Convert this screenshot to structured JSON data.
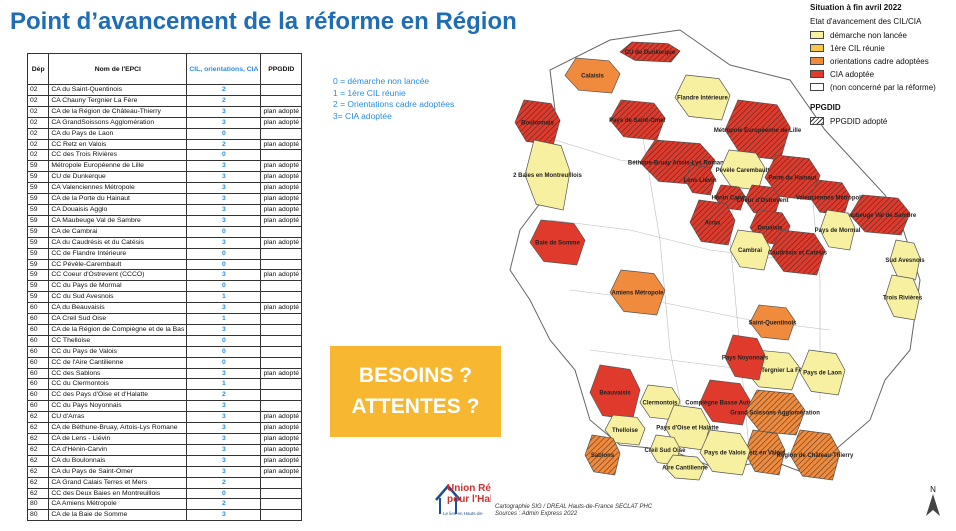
{
  "title": "Point d’avancement de la réforme en Région",
  "table": {
    "headers": {
      "dep": "Dép",
      "name": "Nom de l'EPCI",
      "cil": "CIL, orientations, CIA",
      "ppgdid": "PPGDID"
    },
    "rows": [
      [
        "02",
        "CA du Saint-Quentinois",
        "2",
        ""
      ],
      [
        "02",
        "CA Chauny Tergnier La Fère",
        "2",
        ""
      ],
      [
        "02",
        "CA de la Région de Château-Thierry",
        "3",
        "plan adopté"
      ],
      [
        "02",
        "CA GrandSoissons Agglomération",
        "3",
        "plan adopté"
      ],
      [
        "02",
        "CA du Pays de Laon",
        "0",
        ""
      ],
      [
        "02",
        "CC Retz en Valois",
        "2",
        "plan adopté"
      ],
      [
        "02",
        "CC des Trois Rivières",
        "0",
        ""
      ],
      [
        "59",
        "Métropole Européenne de Lille",
        "3",
        "plan adopté"
      ],
      [
        "59",
        "CU de Dunkerque",
        "3",
        "plan adopté"
      ],
      [
        "59",
        "CA Valenciennes Métropole",
        "3",
        "plan adopté"
      ],
      [
        "59",
        "CA de la Porte du Hainaut",
        "3",
        "plan adopté"
      ],
      [
        "59",
        "CA Douaisis Agglo",
        "3",
        "plan adopté"
      ],
      [
        "59",
        "CA Maubeuge Val de Sambre",
        "3",
        "plan adopté"
      ],
      [
        "59",
        "CA de Cambrai",
        "0",
        ""
      ],
      [
        "59",
        "CA du Caudrésis et du Catésis",
        "3",
        "plan adopté"
      ],
      [
        "59",
        "CC de Flandre Intérieure",
        "0",
        ""
      ],
      [
        "59",
        "CC Pévèle-Carembault",
        "0",
        ""
      ],
      [
        "59",
        "CC Coeur d'Ostrevent (CCCO)",
        "3",
        "plan adopté"
      ],
      [
        "59",
        "CC du Pays de Mormal",
        "0",
        ""
      ],
      [
        "59",
        "CC du Sud Avesnois",
        "1",
        ""
      ],
      [
        "60",
        "CA du Beauvaisis",
        "3",
        "plan adopté"
      ],
      [
        "60",
        "CA Creil Sud Oise",
        "1",
        ""
      ],
      [
        "60",
        "CA de la Région de Compiègne et de la Bas",
        "3",
        ""
      ],
      [
        "60",
        "CC Thelloise",
        "0",
        ""
      ],
      [
        "60",
        "CC du Pays de Valois",
        "0",
        ""
      ],
      [
        "60",
        "CC de l'Aire Cantilienne",
        "0",
        ""
      ],
      [
        "60",
        "CC des Sablons",
        "3",
        "plan adopté"
      ],
      [
        "60",
        "CC du Clermontois",
        "1",
        ""
      ],
      [
        "60",
        "CC des Pays d'Oise et d'Halatte",
        "2",
        ""
      ],
      [
        "60",
        "CC du Pays Noyonnais",
        "3",
        ""
      ],
      [
        "62",
        "CU d'Arras",
        "3",
        "plan adopté"
      ],
      [
        "62",
        "CA de Béthune-Bruay, Artois-Lys Romane",
        "3",
        "plan adopté"
      ],
      [
        "62",
        "CA de Lens - Liévin",
        "3",
        "plan adopté"
      ],
      [
        "62",
        "CA d'Hénin-Carvin",
        "3",
        "plan adopté"
      ],
      [
        "62",
        "CA du Boulonnais",
        "3",
        "plan adopté"
      ],
      [
        "62",
        "CA du Pays de Saint-Omer",
        "3",
        "plan adopté"
      ],
      [
        "62",
        "CA Grand Calais Terres et Mers",
        "2",
        ""
      ],
      [
        "62",
        "CC des Deux Baies en Montreuillois",
        "0",
        ""
      ],
      [
        "80",
        "CA Amiens Métropole",
        "2",
        ""
      ],
      [
        "80",
        "CA de la Baie de Somme",
        "3",
        ""
      ]
    ]
  },
  "code_legend": [
    "0 = démarche non lancée",
    "1 = 1ère CIL réunie",
    "2 = Orientations cadre adoptées",
    "3= CIA adoptée"
  ],
  "besoins": {
    "line1": "BESOINS ?",
    "line2": "ATTENTES ?"
  },
  "map_legend": {
    "situation": "Situation à fin avril 2022",
    "etat_title": "Etat d'avancement des CIL/CIA",
    "items": [
      {
        "label": "démarche non lancée",
        "color": "#f7f0a0"
      },
      {
        "label": "1ère CIL réunie",
        "color": "#f9c64a"
      },
      {
        "label": "orientations cadre adoptées",
        "color": "#f08a3c"
      },
      {
        "label": "CIA adoptée",
        "color": "#e03a2c"
      },
      {
        "label": "(non concerné par la réforme)",
        "color": "#ffffff"
      }
    ],
    "ppgdid_title": "PPGDID",
    "ppgdid_item": "PPGDID adopté"
  },
  "map_labels": [
    "CU de Dunkerque",
    "Calaisis",
    "Flandre Intérieure",
    "Pays de Saint-Omer",
    "Boulonnais",
    "Métropole Européenne de Lille",
    "Béthune-Bruay Artois-Lys Romane",
    "Pévèle Carembault",
    "Porte du Hainaut",
    "Lens Liévin",
    "Hénin Carvin",
    "Coeur d'Ostrevent",
    "Valenciennes Métropole",
    "2 Baies en Montreuillois",
    "Arras",
    "Douaisis",
    "Maubeuge Val de Sambre",
    "Pays de Mormal",
    "Cambrai",
    "Caudrésis et Catésis",
    "Baie de Somme",
    "Sud Avesnois",
    "Trois Rivières",
    "Amiens Métropole",
    "Saint-Quentinois",
    "Chauny-Tergnier La Fère",
    "Pays Noyonnais",
    "Pays de Laon",
    "Beauvaisis",
    "Clermontois",
    "Compiègne Basse Automne",
    "Grand Soissons Agglomération",
    "Thelloise",
    "Pays d'Oise et Halatte",
    "Retz en Valois",
    "Creil Sud Oise",
    "Sablons",
    "Aire Cantilienne",
    "Pays de Valois",
    "Région de Château-Thierry"
  ],
  "source": {
    "line1": "Cartographie SIG / DREAL Hauts-de-France SECLAT PHC",
    "line2": "Sources : Admin Express 2022"
  },
  "logo": {
    "text1": "Union Rég",
    "text2": "pour l'Hal",
    "sub": "Le lien en Hauts-de-"
  },
  "north": "N"
}
